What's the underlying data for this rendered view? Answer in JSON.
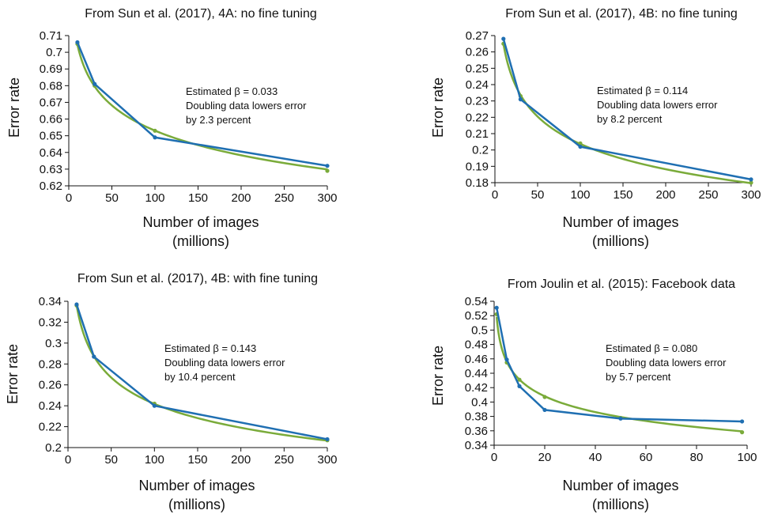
{
  "colors": {
    "fit": "#7aab3a",
    "data": "#1f6fb2",
    "text": "#111111"
  },
  "chart_data": [
    {
      "type": "line",
      "title": "From Sun et al. (2017), 4A: no fine tuning",
      "xlabel": "Number of images",
      "xlabel_unit": "(millions)",
      "ylabel": "Error rate",
      "xlim": [
        0,
        300
      ],
      "ylim": [
        0.62,
        0.71
      ],
      "xticks": [
        0,
        50,
        100,
        150,
        200,
        250,
        300
      ],
      "yticks": [
        0.62,
        0.63,
        0.64,
        0.65,
        0.66,
        0.67,
        0.68,
        0.69,
        0.7,
        0.71
      ],
      "ytick_labels": [
        "0.62",
        "0.63",
        "0.64",
        "0.65",
        "0.66",
        "0.67",
        "0.68",
        "0.69",
        "0.7",
        "0.71"
      ],
      "series": [
        {
          "role": "data",
          "x": [
            10,
            30,
            100,
            300
          ],
          "y": [
            0.706,
            0.681,
            0.649,
            0.632
          ]
        },
        {
          "role": "fit",
          "x": [
            10,
            30,
            100,
            300
          ],
          "y": [
            0.705,
            0.68,
            0.653,
            0.629
          ],
          "beta": 0.033
        }
      ],
      "annotation": [
        "Estimated β = 0.033",
        "Doubling data lowers error",
        "by 2.3 percent"
      ]
    },
    {
      "type": "line",
      "title": "From Sun et al. (2017), 4B: no fine tuning",
      "xlabel": "Number of images",
      "xlabel_unit": "(millions)",
      "ylabel": "Error rate",
      "xlim": [
        0,
        300
      ],
      "ylim": [
        0.18,
        0.27
      ],
      "xticks": [
        0,
        50,
        100,
        150,
        200,
        250,
        300
      ],
      "yticks": [
        0.18,
        0.19,
        0.2,
        0.21,
        0.22,
        0.23,
        0.24,
        0.25,
        0.26,
        0.27
      ],
      "ytick_labels": [
        "0.18",
        "0.19",
        "0.2",
        "0.21",
        "0.22",
        "0.23",
        "0.24",
        "0.25",
        "0.26",
        "0.27"
      ],
      "series": [
        {
          "role": "data",
          "x": [
            10,
            30,
            100,
            300
          ],
          "y": [
            0.268,
            0.231,
            0.202,
            0.182
          ]
        },
        {
          "role": "fit",
          "x": [
            10,
            30,
            100,
            300
          ],
          "y": [
            0.265,
            0.233,
            0.204,
            0.18
          ],
          "beta": 0.114
        }
      ],
      "annotation": [
        "Estimated β = 0.114",
        "Doubling data lowers error",
        "by 8.2 percent"
      ]
    },
    {
      "type": "line",
      "title": "From Sun et al. (2017), 4B: with fine tuning",
      "xlabel": "Number of images",
      "xlabel_unit": "(millions)",
      "ylabel": "Error rate",
      "xlim": [
        0,
        300
      ],
      "ylim": [
        0.2,
        0.34
      ],
      "xticks": [
        0,
        50,
        100,
        150,
        200,
        250,
        300
      ],
      "yticks": [
        0.2,
        0.22,
        0.24,
        0.26,
        0.28,
        0.3,
        0.32,
        0.34
      ],
      "ytick_labels": [
        "0.2",
        "0.22",
        "0.24",
        "0.26",
        "0.28",
        "0.3",
        "0.32",
        "0.34"
      ],
      "series": [
        {
          "role": "data",
          "x": [
            10,
            30,
            100,
            300
          ],
          "y": [
            0.337,
            0.287,
            0.24,
            0.208
          ]
        },
        {
          "role": "fit",
          "x": [
            10,
            30,
            100,
            300
          ],
          "y": [
            0.336,
            0.287,
            0.242,
            0.207
          ],
          "beta": 0.143
        }
      ],
      "annotation": [
        "Estimated β = 0.143",
        "Doubling data lowers error",
        "by 10.4 percent"
      ]
    },
    {
      "type": "line",
      "title": "From Joulin et al. (2015): Facebook data",
      "xlabel": "Number of images",
      "xlabel_unit": "(millions)",
      "ylabel": "Error rate",
      "xlim": [
        0,
        100
      ],
      "ylim": [
        0.34,
        0.54
      ],
      "xticks": [
        0,
        20,
        40,
        60,
        80,
        100
      ],
      "yticks": [
        0.34,
        0.36,
        0.38,
        0.4,
        0.42,
        0.44,
        0.46,
        0.48,
        0.5,
        0.52,
        0.54
      ],
      "ytick_labels": [
        "0.34",
        "0.36",
        "0.38",
        "0.4",
        "0.42",
        "0.44",
        "0.46",
        "0.48",
        "0.5",
        "0.52",
        "0.54"
      ],
      "series": [
        {
          "role": "data",
          "x": [
            1,
            5,
            10,
            20,
            50,
            98
          ],
          "y": [
            0.531,
            0.459,
            0.422,
            0.389,
            0.377,
            0.373
          ]
        },
        {
          "role": "fit",
          "x": [
            1,
            5,
            10,
            20,
            50,
            98
          ],
          "y": [
            0.522,
            0.455,
            0.431,
            0.407,
            0.378,
            0.358
          ],
          "beta": 0.08
        }
      ],
      "annotation": [
        "Estimated β = 0.080",
        "Doubling data lowers error",
        "by 5.7 percent"
      ]
    }
  ]
}
